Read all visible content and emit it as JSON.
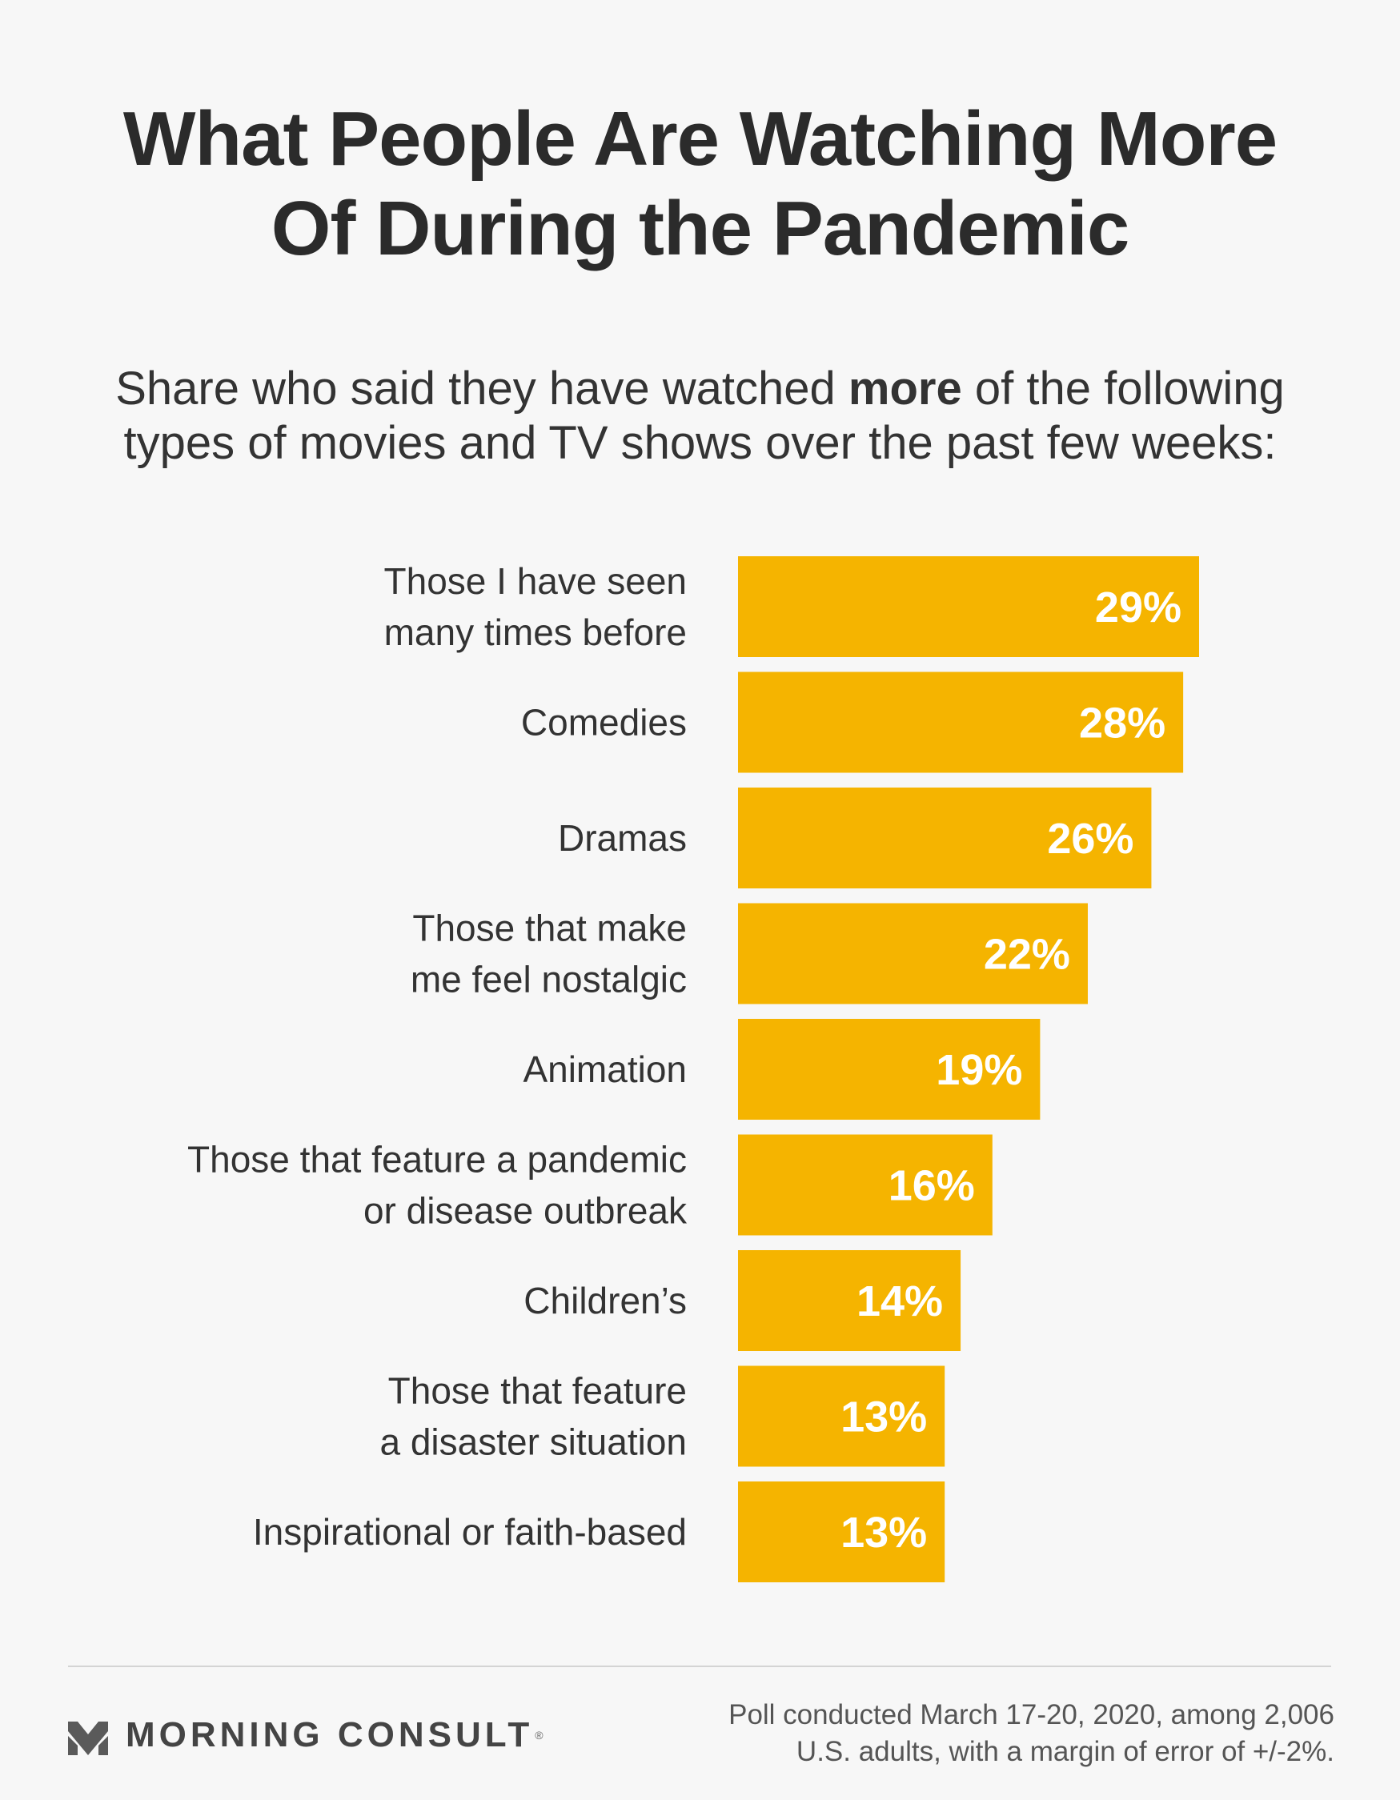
{
  "title": {
    "line1": "What People Are Watching More",
    "line2": "Of During the Pandemic"
  },
  "subtitle": {
    "line1_before": "Share who said they have watched ",
    "line1_bold": "more",
    "line1_after": " of the following",
    "line2": "types of movies and TV shows over the past few weeks:"
  },
  "colors": {
    "bar": "#f5b400",
    "background": "#f7f7f7",
    "text": "#333333"
  },
  "chart_data": {
    "type": "bar",
    "orientation": "horizontal",
    "categories": [
      [
        "Those I have seen",
        "many times before"
      ],
      [
        "Comedies"
      ],
      [
        "Dramas"
      ],
      [
        "Those that make",
        "me feel nostalgic"
      ],
      [
        "Animation"
      ],
      [
        "Those that feature a pandemic",
        "or disease outbreak"
      ],
      [
        "Children’s"
      ],
      [
        "Those that feature",
        "a disaster situation"
      ],
      [
        "Inspirational or faith-based"
      ]
    ],
    "values": [
      29,
      28,
      26,
      22,
      19,
      16,
      14,
      13,
      13
    ],
    "value_labels": [
      "29%",
      "28%",
      "26%",
      "22%",
      "19%",
      "16%",
      "14%",
      "13%",
      "13%"
    ],
    "unit": "%",
    "xlim": [
      0,
      29
    ],
    "grid": false,
    "legend": "none"
  },
  "footer": {
    "brand": "MORNING CONSULT",
    "brand_mark": "®",
    "logo_icon": "morning-consult-m-icon",
    "note_line1": "Poll conducted March 17-20, 2020, among 2,006",
    "note_line2": "U.S. adults, with a margin of error of +/-2%."
  }
}
